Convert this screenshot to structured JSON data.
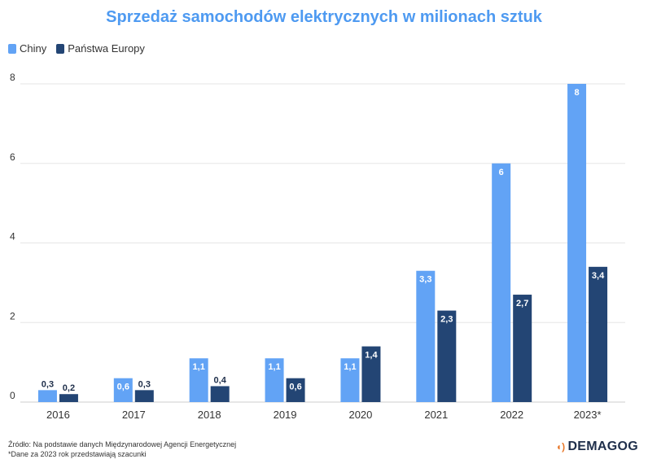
{
  "title": "Sprzedaż samochodów elektrycznych w milionach sztuk",
  "legend": [
    {
      "label": "Chiny",
      "color": "#62a3f5"
    },
    {
      "label": "Państwa Europy",
      "color": "#234574"
    }
  ],
  "footer": {
    "source": "Źródło: Na podstawie danych Międzynarodowej Agencji Energetycznej",
    "note": "*Dane za 2023 rok przedstawiają szacunki"
  },
  "brand": {
    "name": "DEMAGOG",
    "icon": "signal-icon"
  },
  "chart_data": {
    "type": "bar",
    "categories": [
      "2016",
      "2017",
      "2018",
      "2019",
      "2020",
      "2021",
      "2022",
      "2023*"
    ],
    "series": [
      {
        "name": "Chiny",
        "color": "#62a3f5",
        "values": [
          0.3,
          0.6,
          1.1,
          1.1,
          1.1,
          3.3,
          6,
          8
        ],
        "labels": [
          "0,3",
          "0,6",
          "1,1",
          "1,1",
          "1,1",
          "3,3",
          "6",
          "8"
        ]
      },
      {
        "name": "Państwa Europy",
        "color": "#234574",
        "values": [
          0.2,
          0.3,
          0.4,
          0.6,
          1.4,
          2.3,
          2.7,
          3.4
        ],
        "labels": [
          "0,2",
          "0,3",
          "0,4",
          "0,6",
          "1,4",
          "2,3",
          "2,7",
          "3,4"
        ]
      }
    ],
    "yticks": [
      0,
      2,
      4,
      6,
      8
    ],
    "ylim": [
      0,
      8
    ],
    "grid": true,
    "legend_position": "top-left"
  }
}
